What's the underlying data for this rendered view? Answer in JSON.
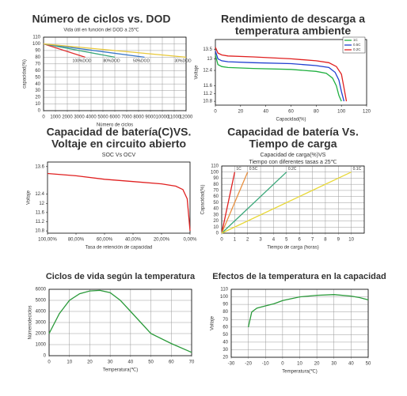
{
  "chart_data": [
    {
      "type": "line",
      "title": [
        "Número de ciclos vs. DOD"
      ],
      "subtitle": [
        "Vida útil en función del DOD a 25℃"
      ],
      "x_label": "Número de ciclos",
      "y_label": "capacidad(%)",
      "xlim": [
        0,
        12000
      ],
      "xticks": [
        0,
        1000,
        2000,
        3000,
        4000,
        5000,
        6000,
        7000,
        8000,
        9000,
        10000,
        11000,
        12000
      ],
      "ylim": [
        0,
        110
      ],
      "yticks": [
        0,
        10,
        20,
        30,
        40,
        50,
        60,
        70,
        80,
        90,
        100,
        110
      ],
      "grid": true,
      "series_labels": "end",
      "series": [
        {
          "name": "100%DOD",
          "color": "#e03030",
          "x": [
            0,
            3500
          ],
          "values": [
            100,
            80
          ]
        },
        {
          "name": "80%DOD",
          "color": "#3aa87a",
          "x": [
            0,
            6000
          ],
          "values": [
            100,
            80
          ]
        },
        {
          "name": "50%DOD",
          "color": "#3a78c8",
          "x": [
            0,
            8500
          ],
          "values": [
            100,
            80
          ]
        },
        {
          "name": "30%DOD",
          "color": "#e8c838",
          "x": [
            0,
            12000
          ],
          "values": [
            100,
            80
          ]
        }
      ]
    },
    {
      "type": "line",
      "title": [
        "Rendimiento de descarga a",
        "temperatura ambiente"
      ],
      "subtitle": [],
      "x_label": "Capacidad(%)",
      "y_label": "Voltaje",
      "xlim": [
        0,
        120
      ],
      "xticks": [
        0,
        20,
        40,
        60,
        80,
        100,
        120
      ],
      "ylim": [
        10.6,
        14.0
      ],
      "yticks": [
        10.8,
        11.2,
        11.6,
        12.4,
        13.0,
        13.5
      ],
      "grid": false,
      "legend": "upper right",
      "series": [
        {
          "name": "1C",
          "color": "#20b040",
          "x": [
            0,
            2,
            5,
            10,
            30,
            60,
            80,
            88,
            93,
            96,
            98,
            100
          ],
          "values": [
            13.2,
            12.7,
            12.6,
            12.55,
            12.5,
            12.45,
            12.35,
            12.25,
            12.0,
            11.6,
            11.1,
            10.8
          ]
        },
        {
          "name": "0.5C",
          "color": "#2040d0",
          "x": [
            0,
            2,
            5,
            10,
            30,
            60,
            80,
            90,
            95,
            98,
            100,
            102
          ],
          "values": [
            13.4,
            13.0,
            12.9,
            12.85,
            12.8,
            12.75,
            12.65,
            12.55,
            12.3,
            11.9,
            11.3,
            10.8
          ]
        },
        {
          "name": "0.2C",
          "color": "#e02020",
          "x": [
            0,
            2,
            5,
            10,
            30,
            60,
            80,
            90,
            96,
            100,
            102,
            104
          ],
          "values": [
            13.6,
            13.3,
            13.2,
            13.15,
            13.1,
            13.0,
            12.9,
            12.8,
            12.6,
            12.2,
            11.5,
            10.8
          ]
        }
      ]
    },
    {
      "type": "line",
      "title": [
        "Capacidad de batería(C)VS.",
        "Voltaje en circuito abierto"
      ],
      "subtitle": [
        "SOC Vs OCV"
      ],
      "x_label": "Tasa de retención de capacidad",
      "y_label": "Voltaje",
      "xlim": [
        100,
        0
      ],
      "xticks": [
        {
          "value": 100,
          "label": "100,00%"
        },
        {
          "value": 80,
          "label": "80,00%"
        },
        {
          "value": 60,
          "label": "60,00%"
        },
        {
          "value": 40,
          "label": "40,00%"
        },
        {
          "value": 20,
          "label": "20,00%"
        },
        {
          "value": 0,
          "label": "0,00%"
        }
      ],
      "ylim": [
        10.7,
        13.8
      ],
      "yticks": [
        10.8,
        11.2,
        11.6,
        12.0,
        12.4,
        13.6
      ],
      "grid": false,
      "series": [
        {
          "color": "#e02020",
          "x": [
            100,
            80,
            60,
            40,
            20,
            10,
            5,
            2,
            0
          ],
          "values": [
            13.3,
            13.2,
            13.05,
            12.95,
            12.85,
            12.75,
            12.6,
            12.2,
            10.8
          ]
        }
      ]
    },
    {
      "type": "line",
      "title": [
        "Capacidad de batería Vs.",
        "Tiempo de carga"
      ],
      "subtitle": [
        "Capacidad de carga(%)VS",
        "Tiempo con diferentes tasas a 25℃"
      ],
      "x_label": "Tiempo de carga (horas)",
      "y_label": "Capacidad(%)",
      "xlim": [
        0,
        11
      ],
      "xticks": [
        0,
        1,
        2,
        3,
        4,
        5,
        6,
        7,
        8,
        9,
        10
      ],
      "ylim": [
        0,
        110
      ],
      "yticks": [
        0,
        10,
        20,
        30,
        40,
        50,
        60,
        70,
        80,
        90,
        100,
        110
      ],
      "grid": true,
      "series_labels": "end",
      "series": [
        {
          "name": "1C",
          "color": "#e02020",
          "x": [
            0,
            1
          ],
          "values": [
            0,
            100
          ]
        },
        {
          "name": "0.5C",
          "color": "#e89040",
          "x": [
            0,
            2
          ],
          "values": [
            0,
            100
          ]
        },
        {
          "name": "0.2C",
          "color": "#3aa87a",
          "x": [
            0,
            5
          ],
          "values": [
            0,
            100
          ]
        },
        {
          "name": "0.1C",
          "color": "#e8d838",
          "x": [
            0,
            10
          ],
          "values": [
            0,
            100
          ]
        }
      ]
    },
    {
      "type": "line",
      "title": [
        "Ciclos de vida según la temperatura"
      ],
      "subtitle": [],
      "x_label": "Temperatura(℃)",
      "y_label": "Númerodeciclos",
      "xlim": [
        0,
        70
      ],
      "xticks": [
        0,
        10,
        20,
        30,
        40,
        50,
        60,
        70
      ],
      "ylim": [
        0,
        6000
      ],
      "yticks": [
        0,
        1000,
        2000,
        3000,
        4000,
        5000,
        6000
      ],
      "grid": true,
      "series": [
        {
          "color": "#2a9a3a",
          "x": [
            0,
            5,
            10,
            15,
            20,
            25,
            30,
            35,
            40,
            50,
            60,
            70
          ],
          "values": [
            2000,
            3800,
            5000,
            5600,
            5850,
            5900,
            5700,
            5000,
            4000,
            2000,
            1100,
            300
          ]
        }
      ]
    },
    {
      "type": "line",
      "title": [
        "Efectos de la temperatura en la capacidad"
      ],
      "subtitle": [],
      "x_label": "Temperatura(℃)",
      "y_label": "Voltaje",
      "xlim": [
        -30,
        50
      ],
      "xticks": [
        -30,
        -20,
        -10,
        0,
        10,
        20,
        30,
        40,
        50
      ],
      "ylim": [
        20,
        110
      ],
      "yticks": [
        20,
        30,
        40,
        50,
        60,
        70,
        80,
        90,
        100,
        110
      ],
      "grid": true,
      "series": [
        {
          "color": "#2a9a3a",
          "x": [
            -20,
            -19,
            -18,
            -15,
            -10,
            -5,
            0,
            10,
            20,
            30,
            40,
            45,
            50
          ],
          "values": [
            60,
            70,
            80,
            85,
            88,
            91,
            95,
            100,
            102,
            103,
            101,
            99,
            96
          ]
        }
      ]
    }
  ]
}
